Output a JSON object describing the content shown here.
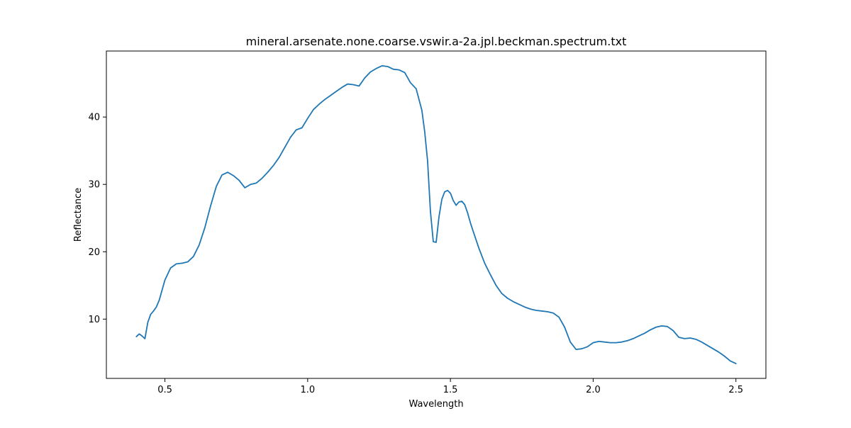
{
  "chart_data": {
    "type": "line",
    "title": "mineral.arsenate.none.coarse.vswir.a-2a.jpl.beckman.spectrum.txt",
    "xlabel": "Wavelength",
    "ylabel": "Reflectance",
    "xlim": [
      0.295,
      2.605
    ],
    "ylim": [
      1.2,
      49.8
    ],
    "xticks": [
      0.5,
      1.0,
      1.5,
      2.0,
      2.5
    ],
    "xtick_labels": [
      "0.5",
      "1.0",
      "1.5",
      "2.0",
      "2.5"
    ],
    "yticks": [
      10,
      20,
      30,
      40
    ],
    "ytick_labels": [
      "10",
      "20",
      "30",
      "40"
    ],
    "grid": false,
    "series": [
      {
        "color": "#1f77b4",
        "x": [
          0.4,
          0.41,
          0.42,
          0.43,
          0.44,
          0.45,
          0.46,
          0.47,
          0.48,
          0.49,
          0.5,
          0.52,
          0.54,
          0.56,
          0.58,
          0.6,
          0.62,
          0.64,
          0.66,
          0.68,
          0.7,
          0.72,
          0.74,
          0.76,
          0.78,
          0.8,
          0.82,
          0.84,
          0.86,
          0.88,
          0.9,
          0.92,
          0.94,
          0.96,
          0.98,
          1.0,
          1.02,
          1.04,
          1.06,
          1.08,
          1.1,
          1.12,
          1.14,
          1.16,
          1.18,
          1.2,
          1.22,
          1.24,
          1.26,
          1.28,
          1.3,
          1.32,
          1.34,
          1.36,
          1.38,
          1.4,
          1.41,
          1.42,
          1.43,
          1.44,
          1.45,
          1.46,
          1.47,
          1.48,
          1.49,
          1.5,
          1.51,
          1.52,
          1.53,
          1.54,
          1.55,
          1.56,
          1.57,
          1.58,
          1.6,
          1.62,
          1.64,
          1.66,
          1.68,
          1.7,
          1.72,
          1.74,
          1.76,
          1.78,
          1.8,
          1.82,
          1.84,
          1.86,
          1.88,
          1.9,
          1.92,
          1.94,
          1.96,
          1.98,
          2.0,
          2.02,
          2.04,
          2.06,
          2.08,
          2.1,
          2.12,
          2.14,
          2.16,
          2.18,
          2.2,
          2.22,
          2.24,
          2.26,
          2.28,
          2.3,
          2.32,
          2.34,
          2.36,
          2.38,
          2.4,
          2.42,
          2.44,
          2.46,
          2.48,
          2.5
        ],
        "y": [
          7.4,
          7.8,
          7.5,
          7.1,
          9.5,
          10.7,
          11.2,
          11.8,
          12.8,
          14.3,
          15.8,
          17.6,
          18.2,
          18.3,
          18.5,
          19.3,
          21.0,
          23.6,
          26.8,
          29.7,
          31.4,
          31.8,
          31.3,
          30.6,
          29.5,
          30.0,
          30.2,
          30.9,
          31.8,
          32.8,
          34.0,
          35.5,
          37.0,
          38.1,
          38.4,
          39.8,
          41.1,
          41.9,
          42.6,
          43.2,
          43.8,
          44.4,
          44.9,
          44.8,
          44.6,
          45.8,
          46.7,
          47.2,
          47.6,
          47.5,
          47.1,
          47.0,
          46.6,
          45.1,
          44.2,
          41.0,
          37.8,
          33.5,
          26.0,
          21.5,
          21.4,
          25.2,
          27.8,
          28.9,
          29.1,
          28.7,
          27.6,
          26.9,
          27.4,
          27.5,
          27.0,
          25.8,
          24.3,
          23.0,
          20.5,
          18.3,
          16.6,
          15.0,
          13.8,
          13.1,
          12.6,
          12.2,
          11.8,
          11.5,
          11.3,
          11.2,
          11.1,
          10.9,
          10.3,
          8.8,
          6.6,
          5.5,
          5.6,
          5.9,
          6.5,
          6.7,
          6.6,
          6.5,
          6.5,
          6.6,
          6.8,
          7.1,
          7.5,
          7.9,
          8.4,
          8.8,
          9.0,
          8.9,
          8.3,
          7.3,
          7.1,
          7.2,
          7.0,
          6.6,
          6.1,
          5.6,
          5.1,
          4.5,
          3.8,
          3.4
        ]
      }
    ]
  }
}
